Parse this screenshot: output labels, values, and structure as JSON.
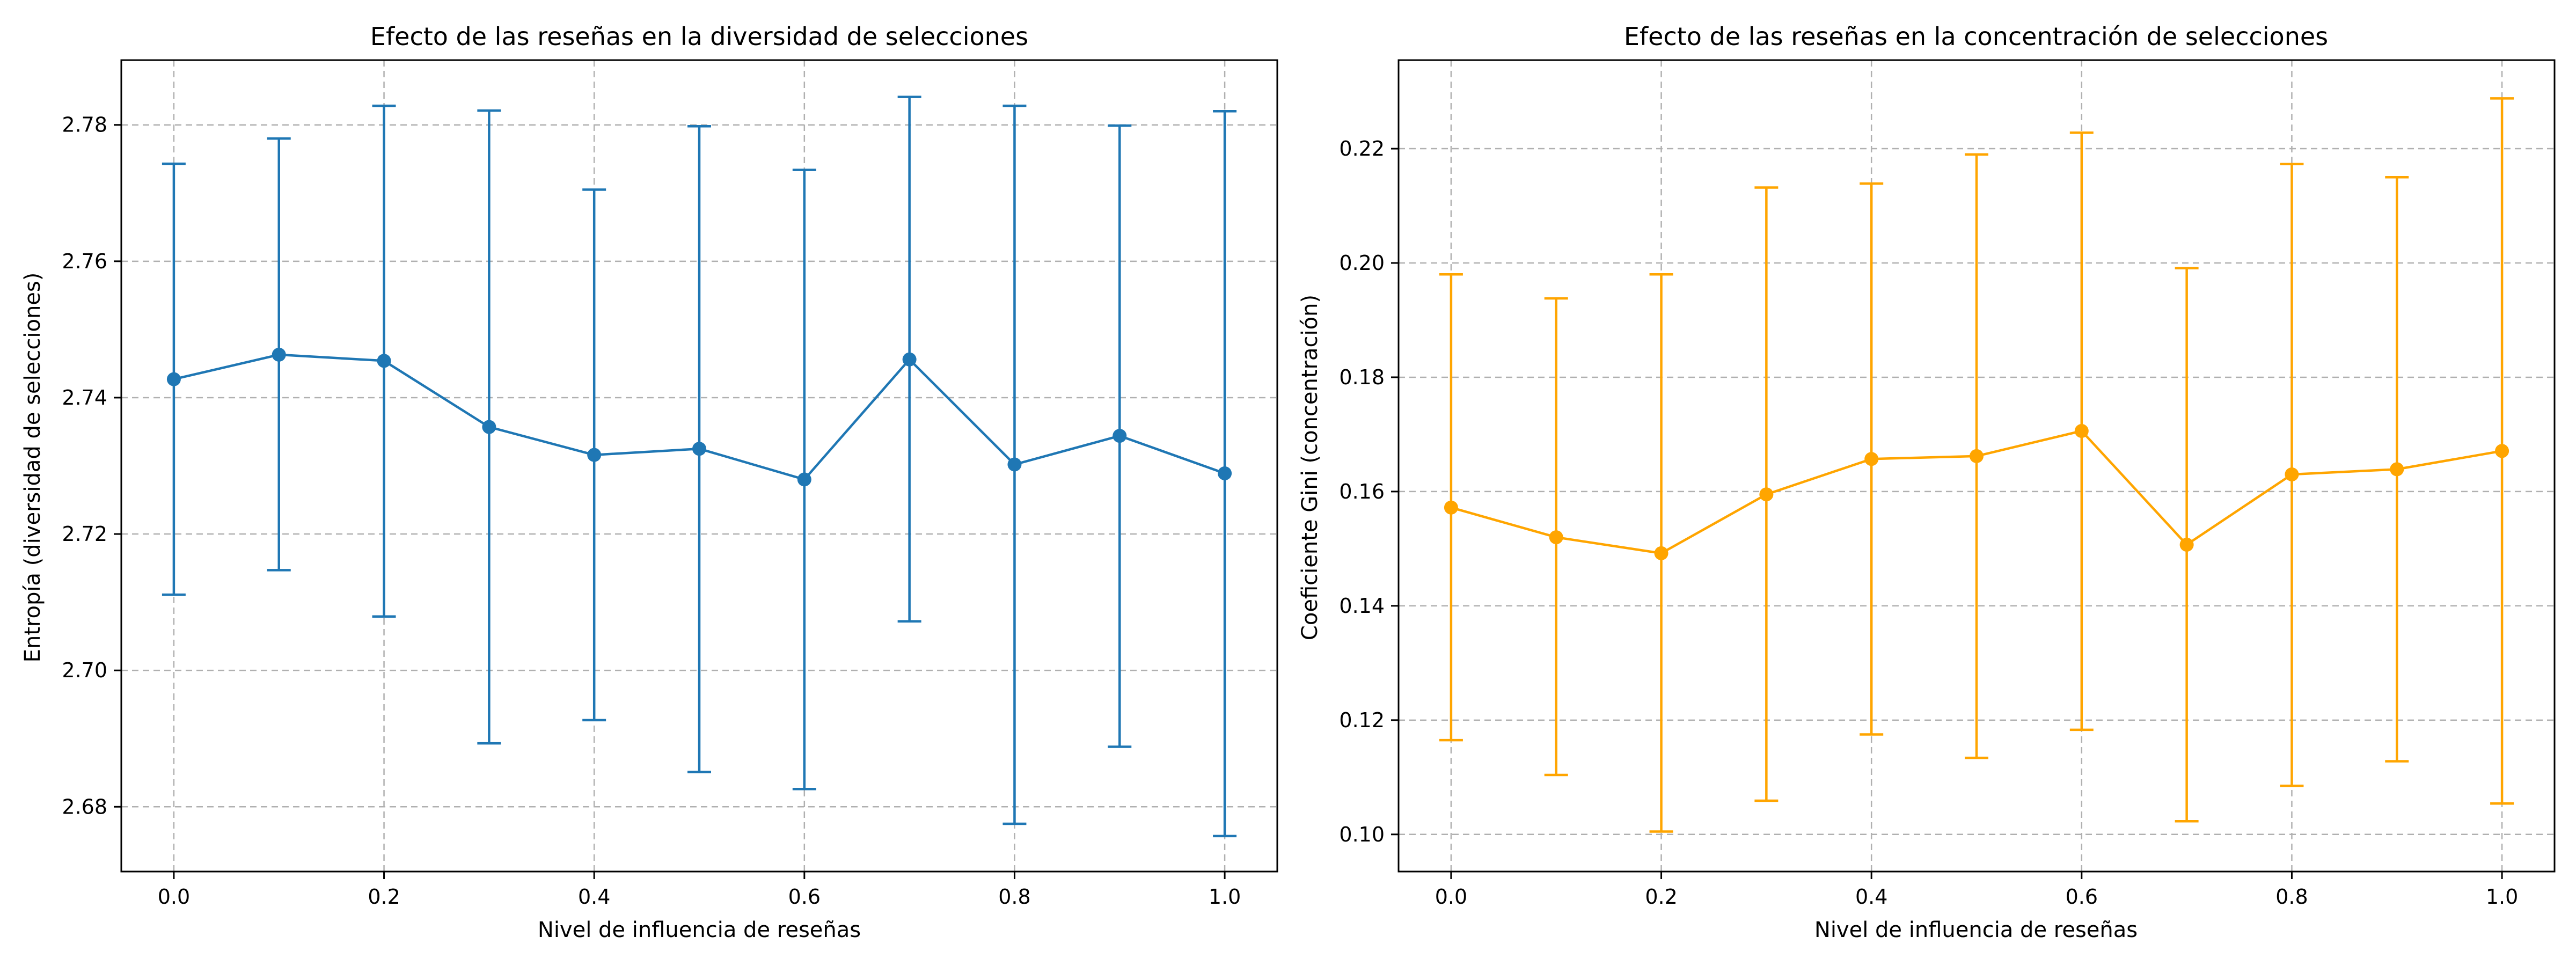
{
  "chart_data": [
    {
      "type": "line",
      "title": "Efecto de las reseñas en la diversidad de selecciones",
      "xlabel": "Nivel de influencia de reseñas",
      "ylabel": "Entropía (diversidad de selecciones)",
      "xlim": [
        -0.05,
        1.05
      ],
      "ylim": [
        2.6705,
        2.7895
      ],
      "xticks": [
        0.0,
        0.2,
        0.4,
        0.6,
        0.8,
        1.0
      ],
      "xtick_labels": [
        "0.0",
        "0.2",
        "0.4",
        "0.6",
        "0.8",
        "1.0"
      ],
      "yticks": [
        2.68,
        2.7,
        2.72,
        2.74,
        2.76,
        2.78
      ],
      "ytick_labels": [
        "2.68",
        "2.70",
        "2.72",
        "2.74",
        "2.76",
        "2.78"
      ],
      "grid": true,
      "color": "#1f77b4",
      "x": [
        0.0,
        0.1,
        0.2,
        0.3,
        0.4,
        0.5,
        0.6,
        0.7,
        0.8,
        0.9,
        1.0
      ],
      "y": [
        2.7427,
        2.7463,
        2.7454,
        2.7357,
        2.7316,
        2.7325,
        2.728,
        2.7456,
        2.7302,
        2.7344,
        2.7289
      ],
      "yerr_low": [
        2.7111,
        2.7147,
        2.7079,
        2.6893,
        2.6927,
        2.6851,
        2.6826,
        2.7072,
        2.6775,
        2.6888,
        2.6757
      ],
      "yerr_high": [
        2.7743,
        2.778,
        2.7828,
        2.7821,
        2.7705,
        2.7798,
        2.7734,
        2.7841,
        2.7828,
        2.7799,
        2.782
      ]
    },
    {
      "type": "line",
      "title": "Efecto de las reseñas en la concentración de selecciones",
      "xlabel": "Nivel de influencia de reseñas",
      "ylabel": "Coeficiente Gini (concentración)",
      "xlim": [
        -0.05,
        1.05
      ],
      "ylim": [
        0.0935,
        0.2355
      ],
      "xticks": [
        0.0,
        0.2,
        0.4,
        0.6,
        0.8,
        1.0
      ],
      "xtick_labels": [
        "0.0",
        "0.2",
        "0.4",
        "0.6",
        "0.8",
        "1.0"
      ],
      "yticks": [
        0.1,
        0.12,
        0.14,
        0.16,
        0.18,
        0.2,
        0.22
      ],
      "ytick_labels": [
        "0.10",
        "0.12",
        "0.14",
        "0.16",
        "0.18",
        "0.20",
        "0.22"
      ],
      "grid": true,
      "color": "#ffa500",
      "x": [
        0.0,
        0.1,
        0.2,
        0.3,
        0.4,
        0.5,
        0.6,
        0.7,
        0.8,
        0.9,
        1.0
      ],
      "y": [
        0.1572,
        0.152,
        0.1492,
        0.1595,
        0.1657,
        0.1662,
        0.1706,
        0.1507,
        0.163,
        0.1639,
        0.1671
      ],
      "yerr_low": [
        0.1165,
        0.1104,
        0.1005,
        0.1059,
        0.1175,
        0.1134,
        0.1183,
        0.1023,
        0.1085,
        0.1128,
        0.1054
      ],
      "yerr_high": [
        0.198,
        0.1938,
        0.198,
        0.2132,
        0.2139,
        0.219,
        0.2228,
        0.1991,
        0.2173,
        0.215,
        0.2288
      ]
    }
  ]
}
